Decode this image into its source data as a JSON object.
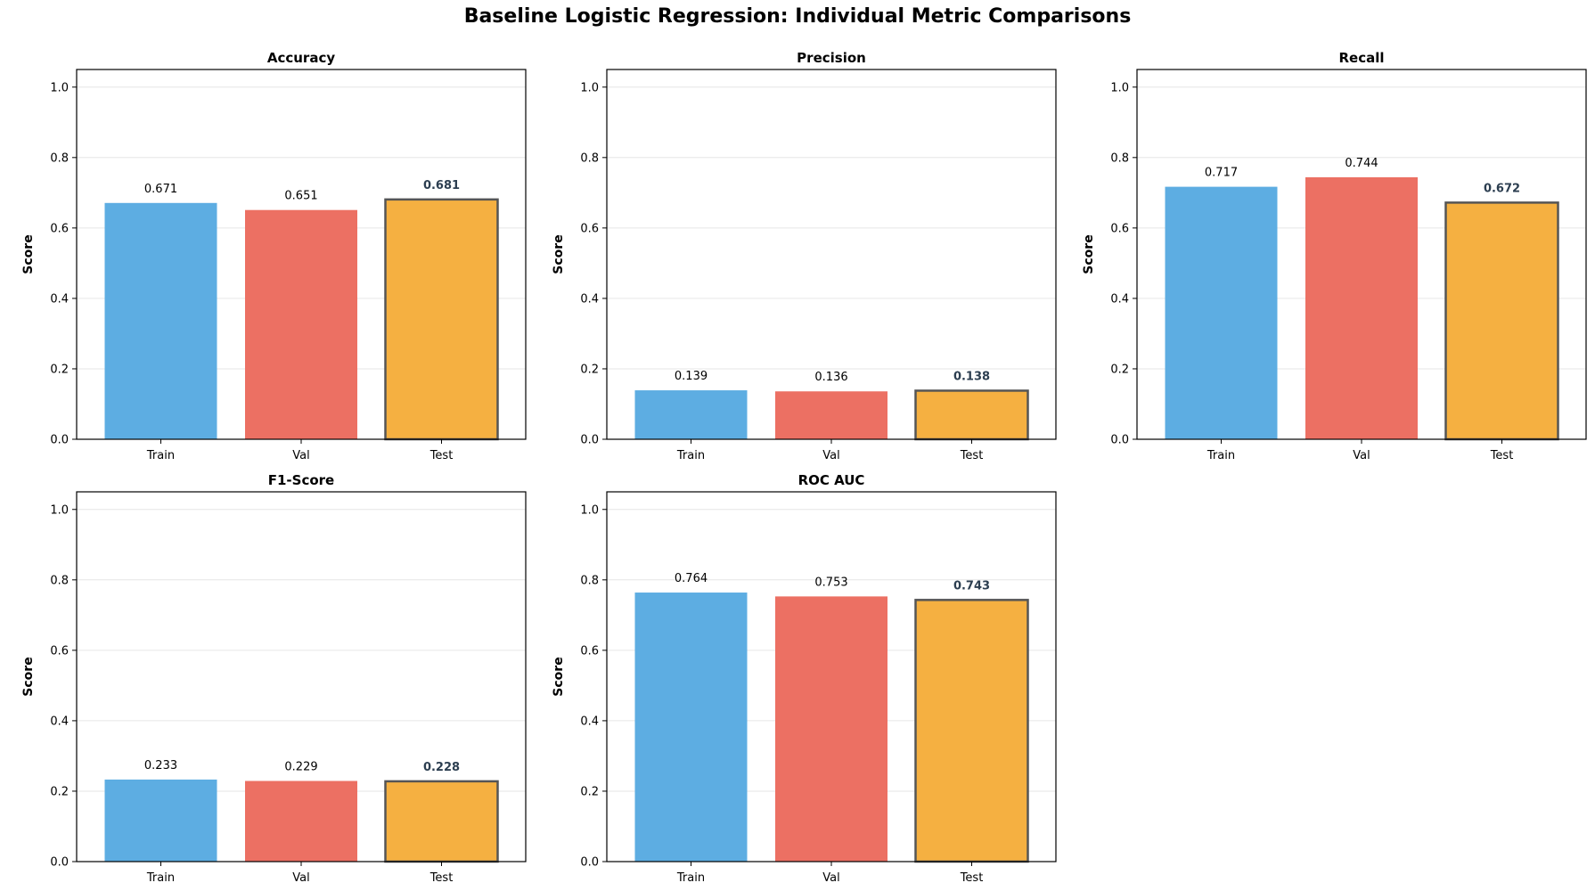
{
  "figure": {
    "title": "Baseline Logistic Regression: Individual Metric Comparisons"
  },
  "colors": {
    "train": "#5DADE2",
    "val": "#EC7063",
    "test": "#F5B041",
    "test_edge": "#555555",
    "test_label": "#2C3E50",
    "grid": "#e6e6e6"
  },
  "chart_data": [
    {
      "type": "bar",
      "title": "Accuracy",
      "xlabel": "",
      "ylabel": "Score",
      "ylim": [
        0,
        1.05
      ],
      "yticks": [
        "0.0",
        "0.2",
        "0.4",
        "0.6",
        "0.8",
        "1.0"
      ],
      "categories": [
        "Train",
        "Val",
        "Test"
      ],
      "values": [
        0.671,
        0.651,
        0.681
      ],
      "labels": [
        "0.671",
        "0.651",
        "0.681"
      ],
      "grid": "y",
      "legend": "none"
    },
    {
      "type": "bar",
      "title": "Precision",
      "xlabel": "",
      "ylabel": "Score",
      "ylim": [
        0,
        1.05
      ],
      "yticks": [
        "0.0",
        "0.2",
        "0.4",
        "0.6",
        "0.8",
        "1.0"
      ],
      "categories": [
        "Train",
        "Val",
        "Test"
      ],
      "values": [
        0.139,
        0.136,
        0.138
      ],
      "labels": [
        "0.139",
        "0.136",
        "0.138"
      ],
      "grid": "y",
      "legend": "none"
    },
    {
      "type": "bar",
      "title": "Recall",
      "xlabel": "",
      "ylabel": "Score",
      "ylim": [
        0,
        1.05
      ],
      "yticks": [
        "0.0",
        "0.2",
        "0.4",
        "0.6",
        "0.8",
        "1.0"
      ],
      "categories": [
        "Train",
        "Val",
        "Test"
      ],
      "values": [
        0.717,
        0.744,
        0.672
      ],
      "labels": [
        "0.717",
        "0.744",
        "0.672"
      ],
      "grid": "y",
      "legend": "none"
    },
    {
      "type": "bar",
      "title": "F1-Score",
      "xlabel": "",
      "ylabel": "Score",
      "ylim": [
        0,
        1.05
      ],
      "yticks": [
        "0.0",
        "0.2",
        "0.4",
        "0.6",
        "0.8",
        "1.0"
      ],
      "categories": [
        "Train",
        "Val",
        "Test"
      ],
      "values": [
        0.233,
        0.229,
        0.228
      ],
      "labels": [
        "0.233",
        "0.229",
        "0.228"
      ],
      "grid": "y",
      "legend": "none"
    },
    {
      "type": "bar",
      "title": "ROC AUC",
      "xlabel": "",
      "ylabel": "Score",
      "ylim": [
        0,
        1.05
      ],
      "yticks": [
        "0.0",
        "0.2",
        "0.4",
        "0.6",
        "0.8",
        "1.0"
      ],
      "categories": [
        "Train",
        "Val",
        "Test"
      ],
      "values": [
        0.764,
        0.753,
        0.743
      ],
      "labels": [
        "0.764",
        "0.753",
        "0.743"
      ],
      "grid": "y",
      "legend": "none"
    }
  ]
}
